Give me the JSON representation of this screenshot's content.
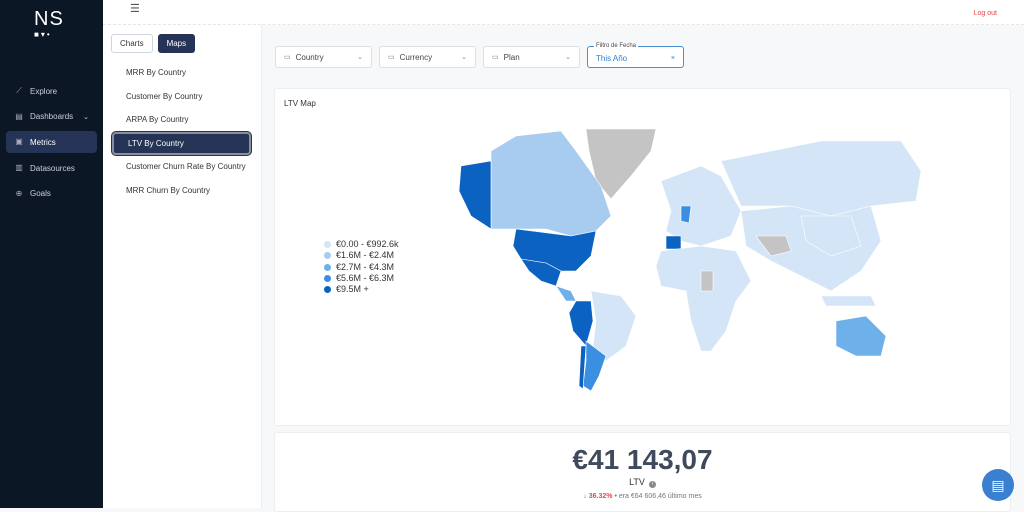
{
  "app": {
    "logo_text": "NS",
    "logo_marks": "■▾•"
  },
  "sidebar": {
    "items": [
      {
        "label": "Explore",
        "icon": "chart-line-icon"
      },
      {
        "label": "Dashboards",
        "icon": "layout-icon"
      },
      {
        "label": "Metrics",
        "icon": "metrics-icon",
        "active": true
      },
      {
        "label": "Datasources",
        "icon": "database-icon"
      },
      {
        "label": "Goals",
        "icon": "target-icon"
      }
    ]
  },
  "topbar": {
    "logout": "Log out"
  },
  "subnav": {
    "tabs": [
      "Charts",
      "Maps"
    ],
    "active_tab": "Maps",
    "items": [
      "MRR By Country",
      "Customer By Country",
      "ARPA By Country",
      "LTV By Country",
      "Customer Churn Rate By Country",
      "MRR Churn By Country"
    ],
    "active_item": "LTV By Country"
  },
  "filters": {
    "country": "Country",
    "currency": "Currency",
    "plan": "Plan",
    "date_label": "Filtro de Fecha",
    "date_value": "This Año"
  },
  "map": {
    "title": "LTV Map",
    "legend": [
      {
        "label": "€0.00 - €992.6k",
        "color": "#d3e5f7"
      },
      {
        "label": "€1.6M - €2.4M",
        "color": "#a7ccf0"
      },
      {
        "label": "€2.7M - €4.3M",
        "color": "#6eb0ea"
      },
      {
        "label": "€5.6M - €6.3M",
        "color": "#3b8fe0"
      },
      {
        "label": "€9.5M +",
        "color": "#0b62c0"
      }
    ],
    "no_data_color": "#c4c4c4"
  },
  "kpi": {
    "value": "€41 143,07",
    "label": "LTV",
    "delta": "36.32%",
    "delta_direction": "down",
    "previous": "• era €64 606,46 último mes"
  }
}
